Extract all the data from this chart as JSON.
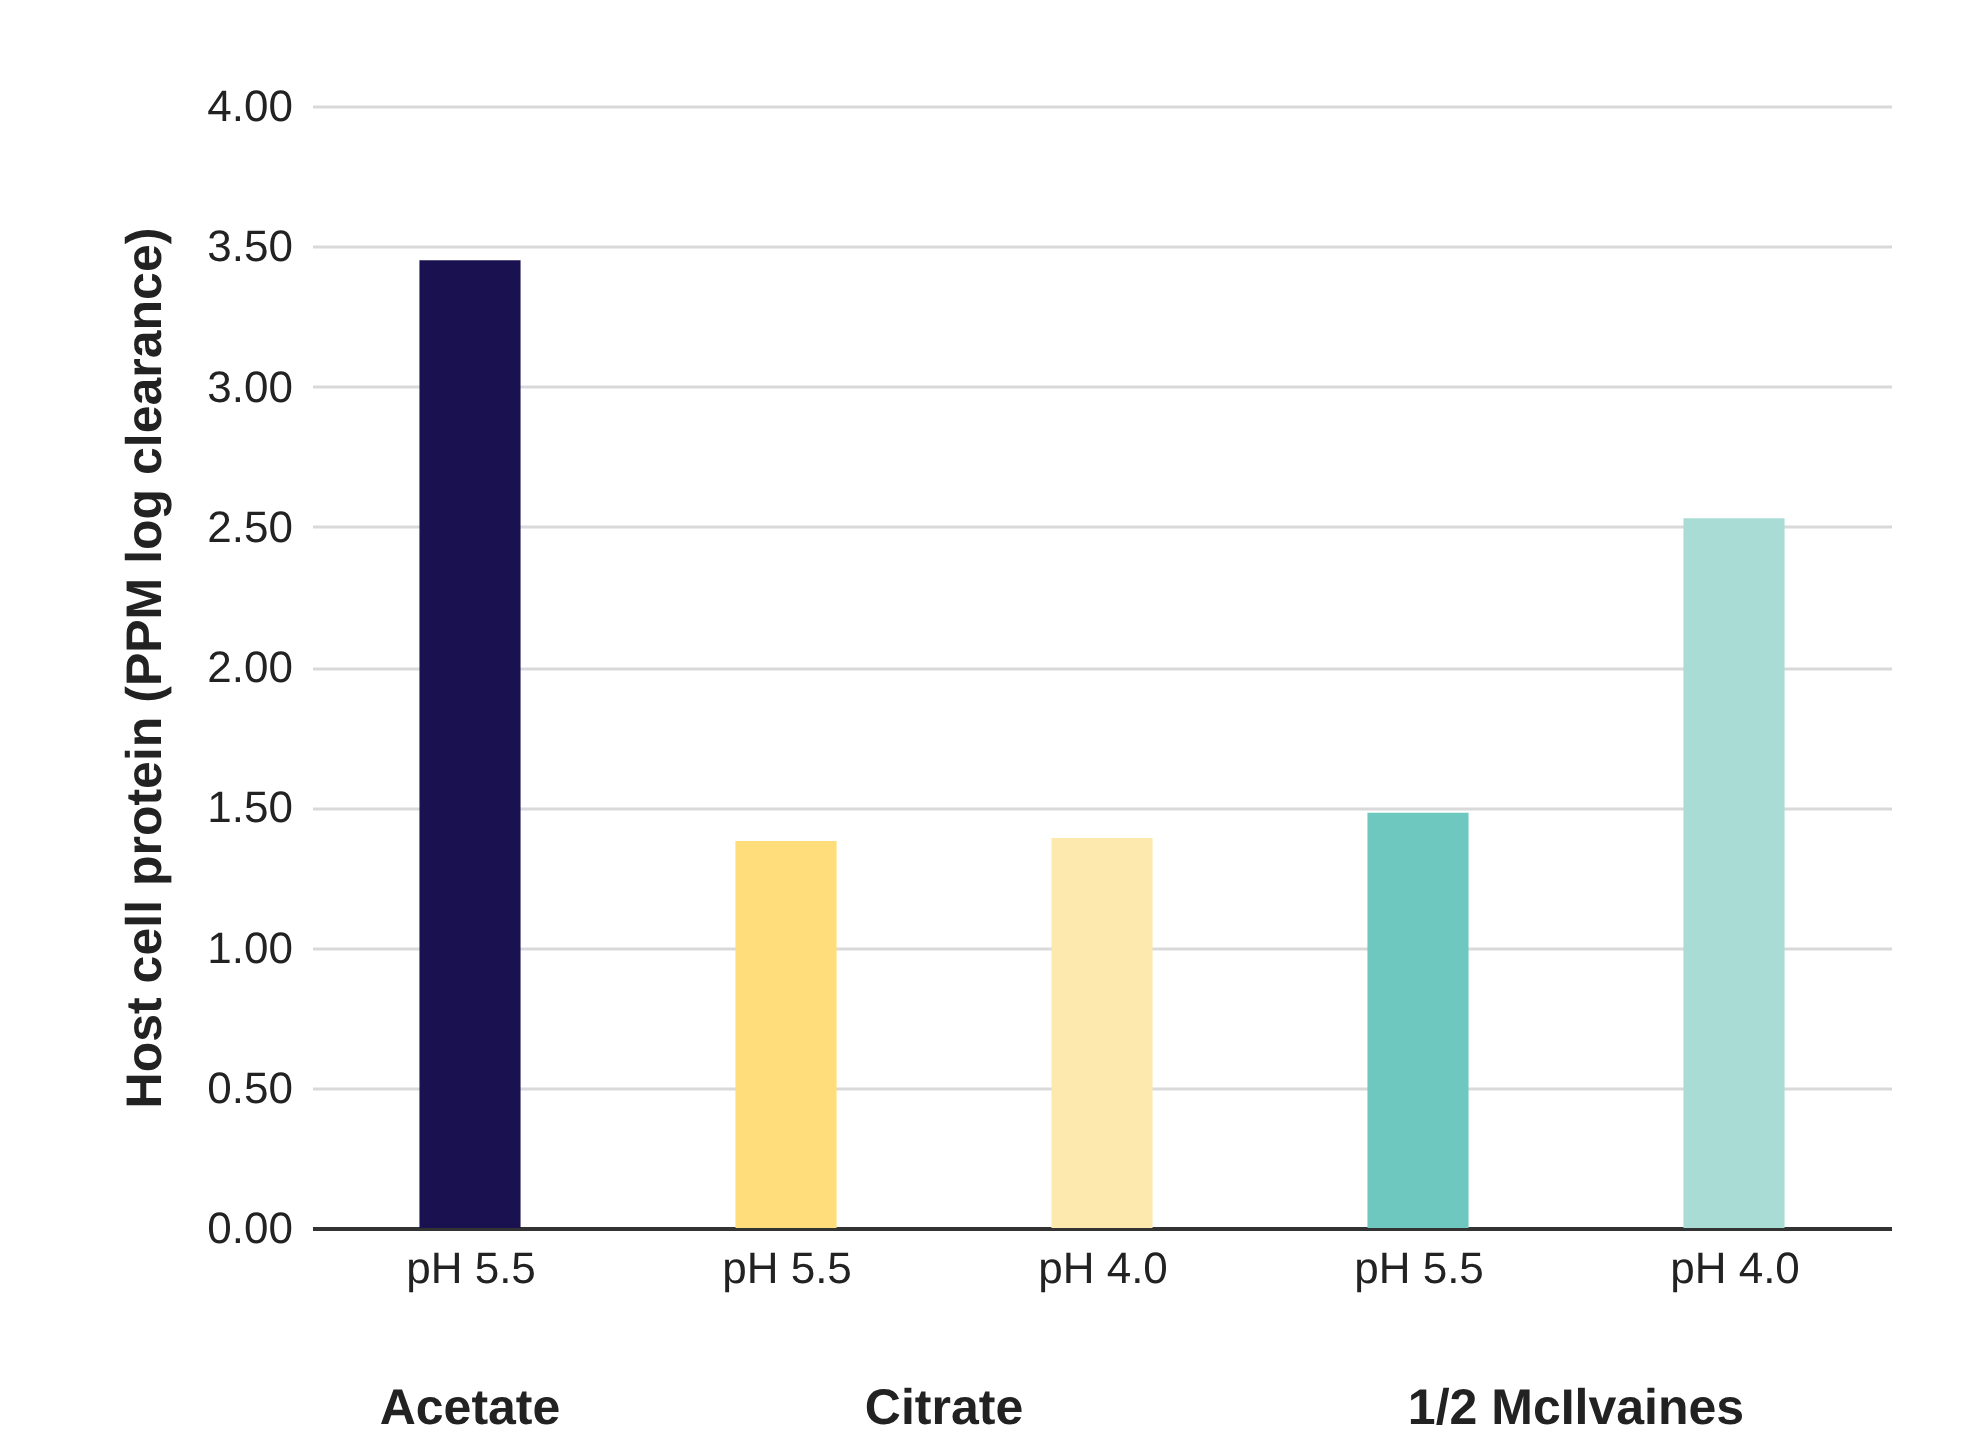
{
  "chart_data": {
    "type": "bar",
    "ylabel": "Host cell protein (PPM log clearance)",
    "categories": [
      "pH 5.5",
      "pH 5.5",
      "pH 4.0",
      "pH 5.5",
      "pH 4.0"
    ],
    "values": [
      3.45,
      1.38,
      1.39,
      1.48,
      2.53
    ],
    "colors": [
      "#1a1250",
      "#ffdd7a",
      "#fde9ad",
      "#6fc8bf",
      "#a8dcd5"
    ],
    "ylim": [
      0,
      4
    ],
    "yticks": [
      {
        "value": 0,
        "label": "0.00"
      },
      {
        "value": 0.5,
        "label": "0.50"
      },
      {
        "value": 1,
        "label": "1.00"
      },
      {
        "value": 1.5,
        "label": "1.50"
      },
      {
        "value": 2,
        "label": "2.00"
      },
      {
        "value": 2.5,
        "label": "2.50"
      },
      {
        "value": 3,
        "label": "3.00"
      },
      {
        "value": 3.5,
        "label": "3.50"
      },
      {
        "value": 4,
        "label": "4.00"
      }
    ],
    "grid": "y",
    "annotations": [
      "Acetate",
      "Citrate",
      "1/2 McIlvaines"
    ]
  }
}
